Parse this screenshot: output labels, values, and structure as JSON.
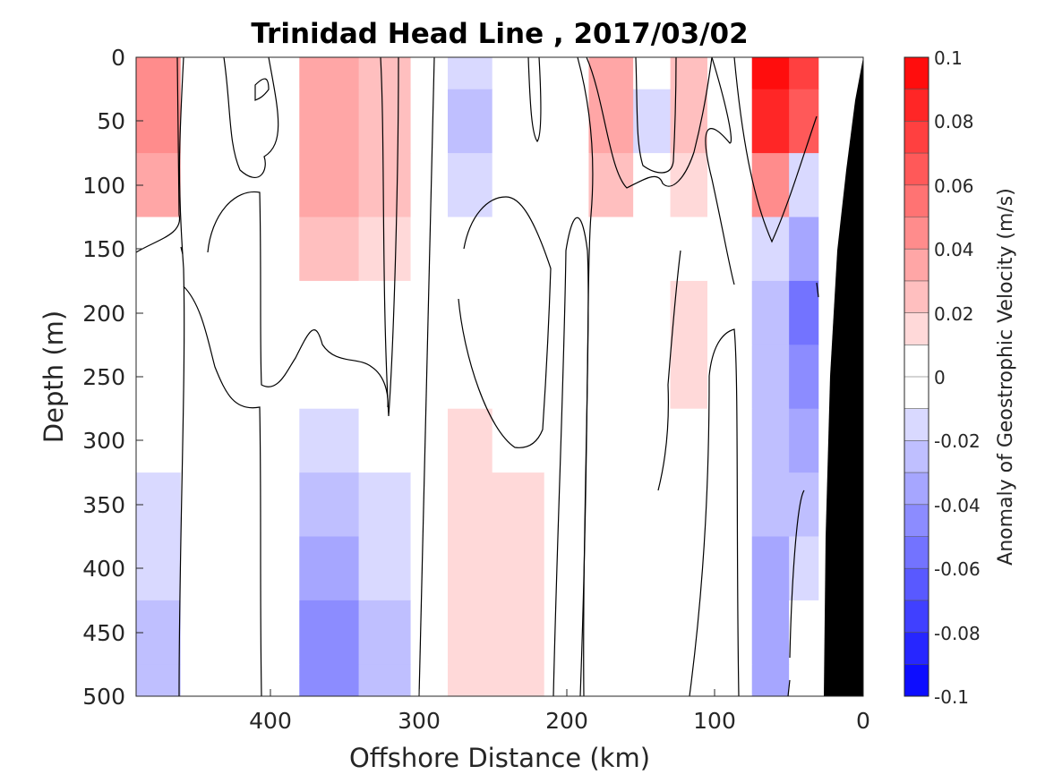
{
  "chart_data": {
    "type": "heatmap",
    "title": "Trinidad Head Line , 2017/03/02",
    "xlabel": "Offshore Distance (km)",
    "ylabel": "Depth (m)",
    "xlim": [
      490,
      0
    ],
    "ylim": [
      0,
      500
    ],
    "x_reversed": true,
    "y_reversed": true,
    "x_ticks": [
      400,
      300,
      200,
      100,
      0
    ],
    "y_ticks": [
      0,
      50,
      100,
      150,
      200,
      250,
      300,
      350,
      400,
      450,
      500
    ],
    "colorbar": {
      "label": "Anomaly of Geostrophic Velocity (m/s)",
      "range": [
        -0.1,
        0.1
      ],
      "ticks": [
        "0.1",
        "0.08",
        "0.06",
        "0.04",
        "0.02",
        "0",
        "-0.02",
        "-0.04",
        "-0.06",
        "-0.08",
        "-0.1"
      ],
      "levels": 20,
      "color_low": "#0000ff",
      "color_zero": "#ffffff",
      "color_high": "#ff0000"
    },
    "zero_contour": true,
    "bathymetry_color": "#000000",
    "x": [
      480,
      440,
      400,
      360,
      320,
      290,
      270,
      230,
      200,
      170,
      140,
      120,
      90,
      60,
      40,
      20
    ],
    "depths": [
      0,
      50,
      100,
      150,
      200,
      250,
      300,
      350,
      400,
      450,
      500
    ],
    "values": [
      [
        0.04,
        0.0,
        0.0,
        0.03,
        0.02,
        -0.01,
        -0.02,
        -0.01,
        0.0,
        0.03,
        -0.01,
        0.02,
        0.0,
        0.09,
        0.07,
        0.0
      ],
      [
        0.045,
        -0.005,
        -0.005,
        0.035,
        0.02,
        -0.005,
        -0.03,
        -0.01,
        -0.01,
        0.035,
        -0.015,
        0.02,
        -0.005,
        0.08,
        0.06,
        0.0
      ],
      [
        0.03,
        -0.01,
        -0.01,
        0.035,
        0.02,
        0.0,
        -0.02,
        -0.01,
        -0.005,
        0.02,
        -0.005,
        0.01,
        -0.01,
        0.04,
        -0.02,
        0.0
      ],
      [
        0.0,
        -0.01,
        0.0,
        0.025,
        0.01,
        -0.005,
        -0.01,
        -0.01,
        0.0,
        -0.01,
        -0.005,
        0.005,
        -0.01,
        -0.02,
        -0.04,
        0.0
      ],
      [
        -0.01,
        -0.005,
        0.0,
        0.0,
        0.0,
        -0.01,
        -0.01,
        -0.01,
        0.0,
        -0.005,
        0.0,
        0.01,
        -0.005,
        -0.03,
        -0.06,
        0.0
      ],
      [
        -0.01,
        0.0,
        0.0,
        -0.005,
        0.0,
        0.0,
        -0.005,
        -0.01,
        0.0,
        -0.005,
        0.005,
        0.015,
        0.0,
        -0.03,
        -0.05,
        0.0
      ],
      [
        -0.01,
        0.0,
        0.0,
        -0.015,
        -0.01,
        0.0,
        0.01,
        0.0,
        0.0,
        0.0,
        0.005,
        0.0,
        0.0,
        -0.025,
        -0.035,
        0.0
      ],
      [
        -0.015,
        0.0,
        -0.005,
        -0.03,
        -0.015,
        0.0,
        0.012,
        0.01,
        0.0,
        -0.005,
        0.0,
        0.0,
        0.0,
        -0.03,
        -0.025,
        0.0
      ],
      [
        -0.02,
        0.0,
        -0.005,
        -0.035,
        -0.02,
        0.0,
        0.012,
        0.012,
        0.0,
        -0.005,
        0.0,
        0.0,
        0.0,
        -0.035,
        -0.02,
        0.0
      ],
      [
        -0.025,
        0.005,
        -0.005,
        -0.045,
        -0.025,
        0.0,
        0.012,
        0.012,
        0.0,
        -0.005,
        -0.005,
        0.0,
        0.0,
        -0.04,
        -0.01,
        0.0
      ],
      [
        -0.03,
        0.005,
        -0.005,
        -0.05,
        -0.03,
        0.0,
        0.012,
        0.012,
        0.0,
        -0.01,
        -0.01,
        0.0,
        0.0,
        -0.04,
        -0.01,
        0.0
      ]
    ]
  }
}
